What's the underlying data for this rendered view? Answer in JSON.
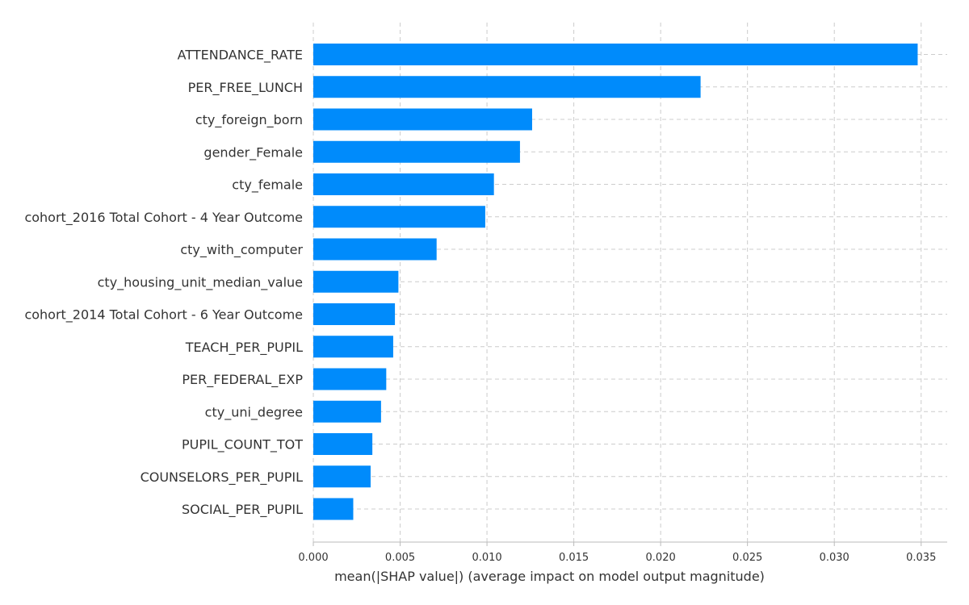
{
  "chart_data": {
    "type": "bar",
    "orientation": "horizontal",
    "categories": [
      "ATTENDANCE_RATE",
      "PER_FREE_LUNCH",
      "cty_foreign_born",
      "gender_Female",
      "cty_female",
      "cohort_2016 Total Cohort - 4 Year Outcome",
      "cty_with_computer",
      "cty_housing_unit_median_value",
      "cohort_2014 Total Cohort - 6 Year Outcome",
      "TEACH_PER_PUPIL",
      "PER_FEDERAL_EXP",
      "cty_uni_degree",
      "PUPIL_COUNT_TOT",
      "COUNSELORS_PER_PUPIL",
      "SOCIAL_PER_PUPIL"
    ],
    "values": [
      0.0348,
      0.0223,
      0.0126,
      0.0119,
      0.0104,
      0.0099,
      0.0071,
      0.0049,
      0.0047,
      0.0046,
      0.0042,
      0.0039,
      0.0034,
      0.0033,
      0.0023
    ],
    "xlabel": "mean(|SHAP value|) (average impact on model output magnitude)",
    "ylabel": "",
    "title": "",
    "xlim": [
      0,
      0.0365
    ],
    "xticks": [
      "0.000",
      "0.005",
      "0.010",
      "0.015",
      "0.020",
      "0.025",
      "0.030",
      "0.035"
    ],
    "grid": true,
    "bar_color": "#008bfb"
  }
}
